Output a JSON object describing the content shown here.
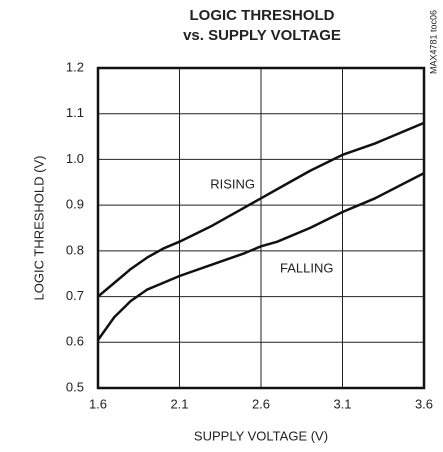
{
  "chart_data": {
    "type": "line",
    "title": [
      "LOGIC THRESHOLD",
      "vs. SUPPLY VOLTAGE"
    ],
    "xlabel": "SUPPLY VOLTAGE (V)",
    "ylabel": "LOGIC THRESHOLD (V)",
    "note": "MAX4781 toc06",
    "x": [
      1.6,
      1.7,
      1.8,
      1.9,
      2.0,
      2.1,
      2.3,
      2.5,
      2.6,
      2.7,
      2.9,
      3.1,
      3.3,
      3.6
    ],
    "series": [
      {
        "name": "RISING",
        "color": "#111111",
        "values": [
          0.7,
          0.73,
          0.76,
          0.785,
          0.805,
          0.82,
          0.855,
          0.895,
          0.915,
          0.935,
          0.975,
          1.01,
          1.035,
          1.08
        ]
      },
      {
        "name": "FALLING",
        "color": "#111111",
        "values": [
          0.605,
          0.655,
          0.69,
          0.715,
          0.73,
          0.745,
          0.77,
          0.795,
          0.81,
          0.82,
          0.85,
          0.885,
          0.915,
          0.97
        ]
      }
    ],
    "xlim": [
      1.6,
      3.6
    ],
    "xticks": [
      1.6,
      2.1,
      2.6,
      3.1,
      3.6
    ],
    "ylim": [
      0.5,
      1.2
    ],
    "yticks": [
      0.5,
      0.6,
      0.7,
      0.8,
      0.9,
      {
        "value": 1.0,
        "label": "1.0"
      },
      1.1,
      1.2
    ],
    "grid": true
  }
}
